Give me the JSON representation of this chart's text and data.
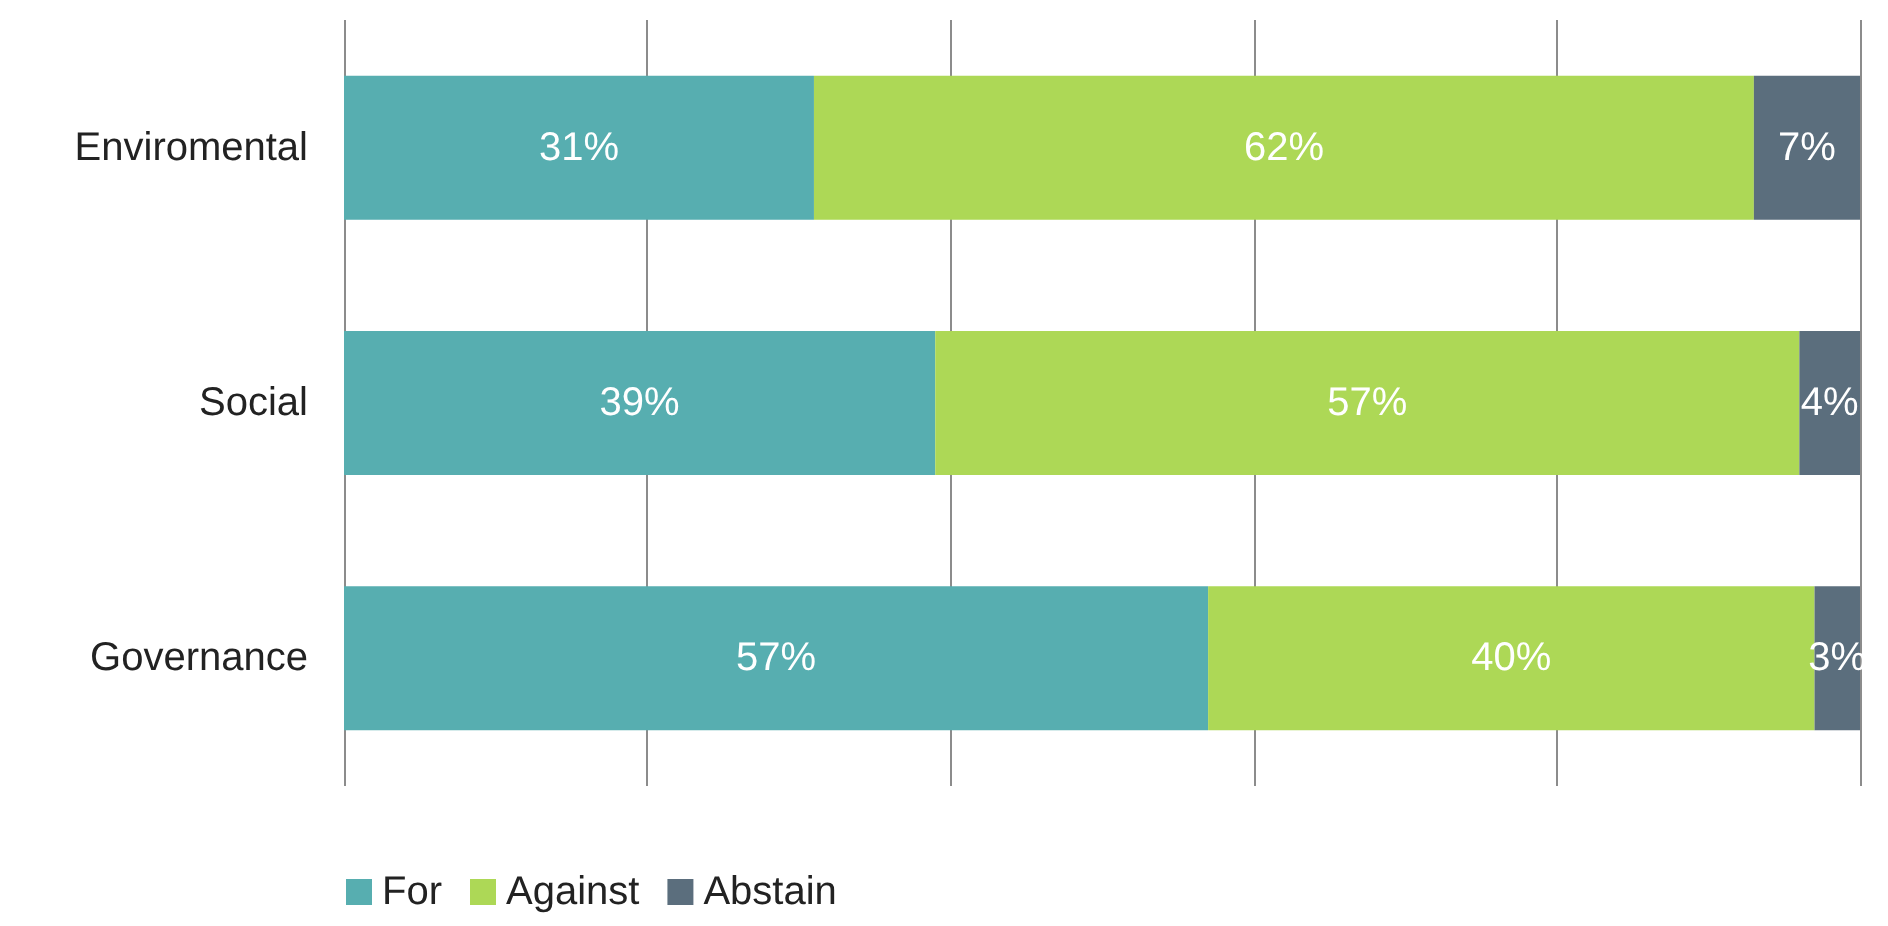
{
  "chart_data": {
    "type": "bar",
    "orientation": "horizontal",
    "stacked": true,
    "categories": [
      "Enviromental",
      "Social",
      "Governance"
    ],
    "series": [
      {
        "name": "For",
        "color": "#57aeb0",
        "values": [
          31,
          39,
          57
        ],
        "value_labels": [
          "31%",
          "39%",
          "57%"
        ]
      },
      {
        "name": "Against",
        "color": "#add856",
        "values": [
          62,
          57,
          40
        ],
        "value_labels": [
          "62%",
          "57%",
          "40%"
        ]
      },
      {
        "name": "Abstain",
        "color": "#5b6e7d",
        "values": [
          7,
          4,
          3
        ],
        "value_labels": [
          "7%",
          "4%",
          "3%"
        ]
      }
    ],
    "xlim": [
      0,
      100
    ],
    "xticks": [
      {
        "value": 0,
        "label": null
      },
      {
        "value": 20,
        "label": null
      },
      {
        "value": 40,
        "label": null
      },
      {
        "value": 60,
        "label": null
      },
      {
        "value": 80,
        "label": null
      },
      {
        "value": 100,
        "label": null
      }
    ],
    "tick_labels": "y",
    "grid": "x",
    "legend": "bottom left"
  }
}
